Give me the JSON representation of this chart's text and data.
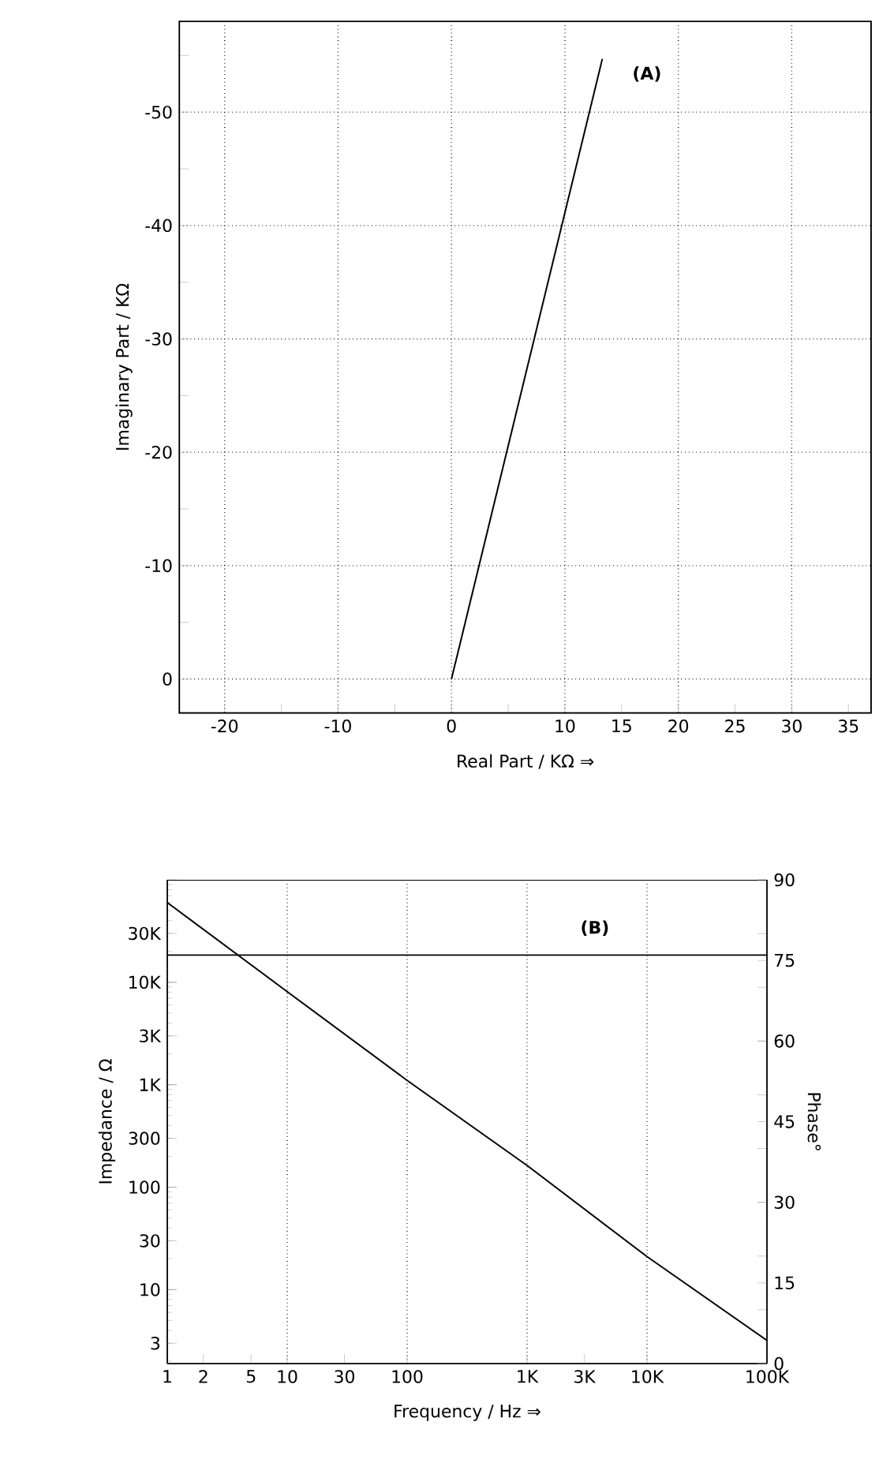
{
  "chart_data": [
    {
      "type": "line",
      "xlabel": "Real Part / KΩ ⇒",
      "ylabel": "Imaginary Part / KΩ",
      "xlim": [
        -24,
        37
      ],
      "ylim": [
        3,
        -58
      ],
      "xticks": [
        -20,
        {
          "value": -15,
          "label": null
        },
        -10,
        {
          "value": -5,
          "label": null
        },
        0,
        {
          "value": 5,
          "label": null
        },
        10,
        15,
        20,
        25,
        30,
        35
      ],
      "yticks": [
        {
          "value": -55,
          "label": null
        },
        -50,
        {
          "value": -45,
          "label": null
        },
        -40,
        {
          "value": -35,
          "label": null
        },
        -30,
        {
          "value": -25,
          "label": null
        },
        -20,
        {
          "value": -15,
          "label": null
        },
        -10,
        {
          "value": -5,
          "label": null
        },
        0
      ],
      "grid": true,
      "annotations": [
        "(A)"
      ],
      "series": [
        {
          "color": "#000000",
          "x": [
            0,
            13.3
          ],
          "values": [
            0,
            -54.7
          ]
        }
      ]
    },
    {
      "type": "line",
      "xlabel": "Frequency / Hz ⇒",
      "ylabel": "Impedance / Ω",
      "y2label": "Phase°",
      "log": "xy",
      "xlim": [
        1,
        100000
      ],
      "ylim": [
        1.9,
        100000
      ],
      "y2lim": [
        0,
        90
      ],
      "xticks": [
        1,
        2,
        5,
        10,
        30,
        100,
        {
          "value": 1000,
          "label": "1K"
        },
        {
          "value": 3000,
          "label": "3K"
        },
        {
          "value": 10000,
          "label": "10K"
        },
        {
          "value": 100000,
          "label": "100K"
        }
      ],
      "yticks": [
        3,
        10,
        30,
        100,
        300,
        {
          "value": 1000,
          "label": "1K"
        },
        {
          "value": 3000,
          "label": "3K"
        },
        {
          "value": 10000,
          "label": "10K"
        },
        {
          "value": 30000,
          "label": "30K"
        }
      ],
      "y2ticks": [
        0,
        15,
        30,
        45,
        60,
        75,
        90
      ],
      "grid": "x",
      "annotations": [
        "(B)"
      ],
      "series": [
        {
          "color": "#000000",
          "x": [
            1,
            10,
            100,
            1000,
            10000,
            100000
          ],
          "values": [
            60000,
            8100,
            1100,
            163,
            21,
            3.2
          ]
        },
        {
          "color": "#000000",
          "axis": "y2",
          "x": [
            1,
            100000
          ],
          "values": [
            76,
            76
          ]
        }
      ]
    }
  ]
}
